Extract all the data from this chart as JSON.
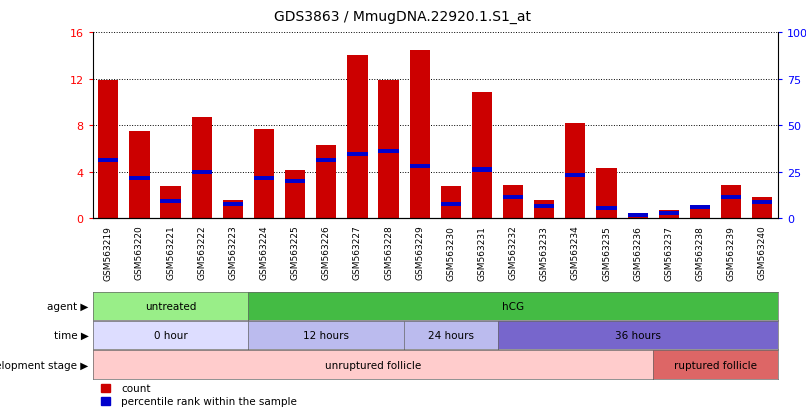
{
  "title": "GDS3863 / MmugDNA.22920.1.S1_at",
  "samples": [
    "GSM563219",
    "GSM563220",
    "GSM563221",
    "GSM563222",
    "GSM563223",
    "GSM563224",
    "GSM563225",
    "GSM563226",
    "GSM563227",
    "GSM563228",
    "GSM563229",
    "GSM563230",
    "GSM563231",
    "GSM563232",
    "GSM563233",
    "GSM563234",
    "GSM563235",
    "GSM563236",
    "GSM563237",
    "GSM563238",
    "GSM563239",
    "GSM563240"
  ],
  "counts": [
    11.9,
    7.5,
    2.8,
    8.7,
    1.6,
    7.7,
    4.2,
    6.3,
    14.0,
    11.9,
    14.5,
    2.8,
    10.9,
    2.9,
    1.6,
    8.2,
    4.3,
    0.3,
    0.7,
    0.9,
    2.9,
    1.8
  ],
  "percentile_ranks": [
    5.0,
    3.5,
    1.5,
    4.0,
    1.2,
    3.5,
    3.2,
    5.0,
    5.5,
    5.8,
    4.5,
    1.2,
    4.2,
    1.8,
    1.1,
    3.7,
    0.9,
    0.3,
    0.5,
    1.0,
    1.8,
    1.4
  ],
  "ylim_left": [
    0,
    16
  ],
  "ylim_right": [
    0,
    100
  ],
  "yticks_left": [
    0,
    4,
    8,
    12,
    16
  ],
  "yticks_right": [
    0,
    25,
    50,
    75,
    100
  ],
  "bar_color": "#cc0000",
  "percentile_color": "#0000cc",
  "agent_groups": [
    {
      "label": "untreated",
      "start": 0,
      "end": 5,
      "color": "#99ee88"
    },
    {
      "label": "hCG",
      "start": 5,
      "end": 22,
      "color": "#44bb44"
    }
  ],
  "time_groups": [
    {
      "label": "0 hour",
      "start": 0,
      "end": 5,
      "color": "#ddddff"
    },
    {
      "label": "12 hours",
      "start": 5,
      "end": 10,
      "color": "#bbbbee"
    },
    {
      "label": "24 hours",
      "start": 10,
      "end": 13,
      "color": "#bbbbee"
    },
    {
      "label": "36 hours",
      "start": 13,
      "end": 22,
      "color": "#7766cc"
    }
  ],
  "dev_groups": [
    {
      "label": "unruptured follicle",
      "start": 0,
      "end": 18,
      "color": "#ffcccc"
    },
    {
      "label": "ruptured follicle",
      "start": 18,
      "end": 22,
      "color": "#dd6666"
    }
  ],
  "legend_items": [
    {
      "label": "count",
      "color": "#cc0000"
    },
    {
      "label": "percentile rank within the sample",
      "color": "#0000cc"
    }
  ],
  "background_color": "#ffffff"
}
